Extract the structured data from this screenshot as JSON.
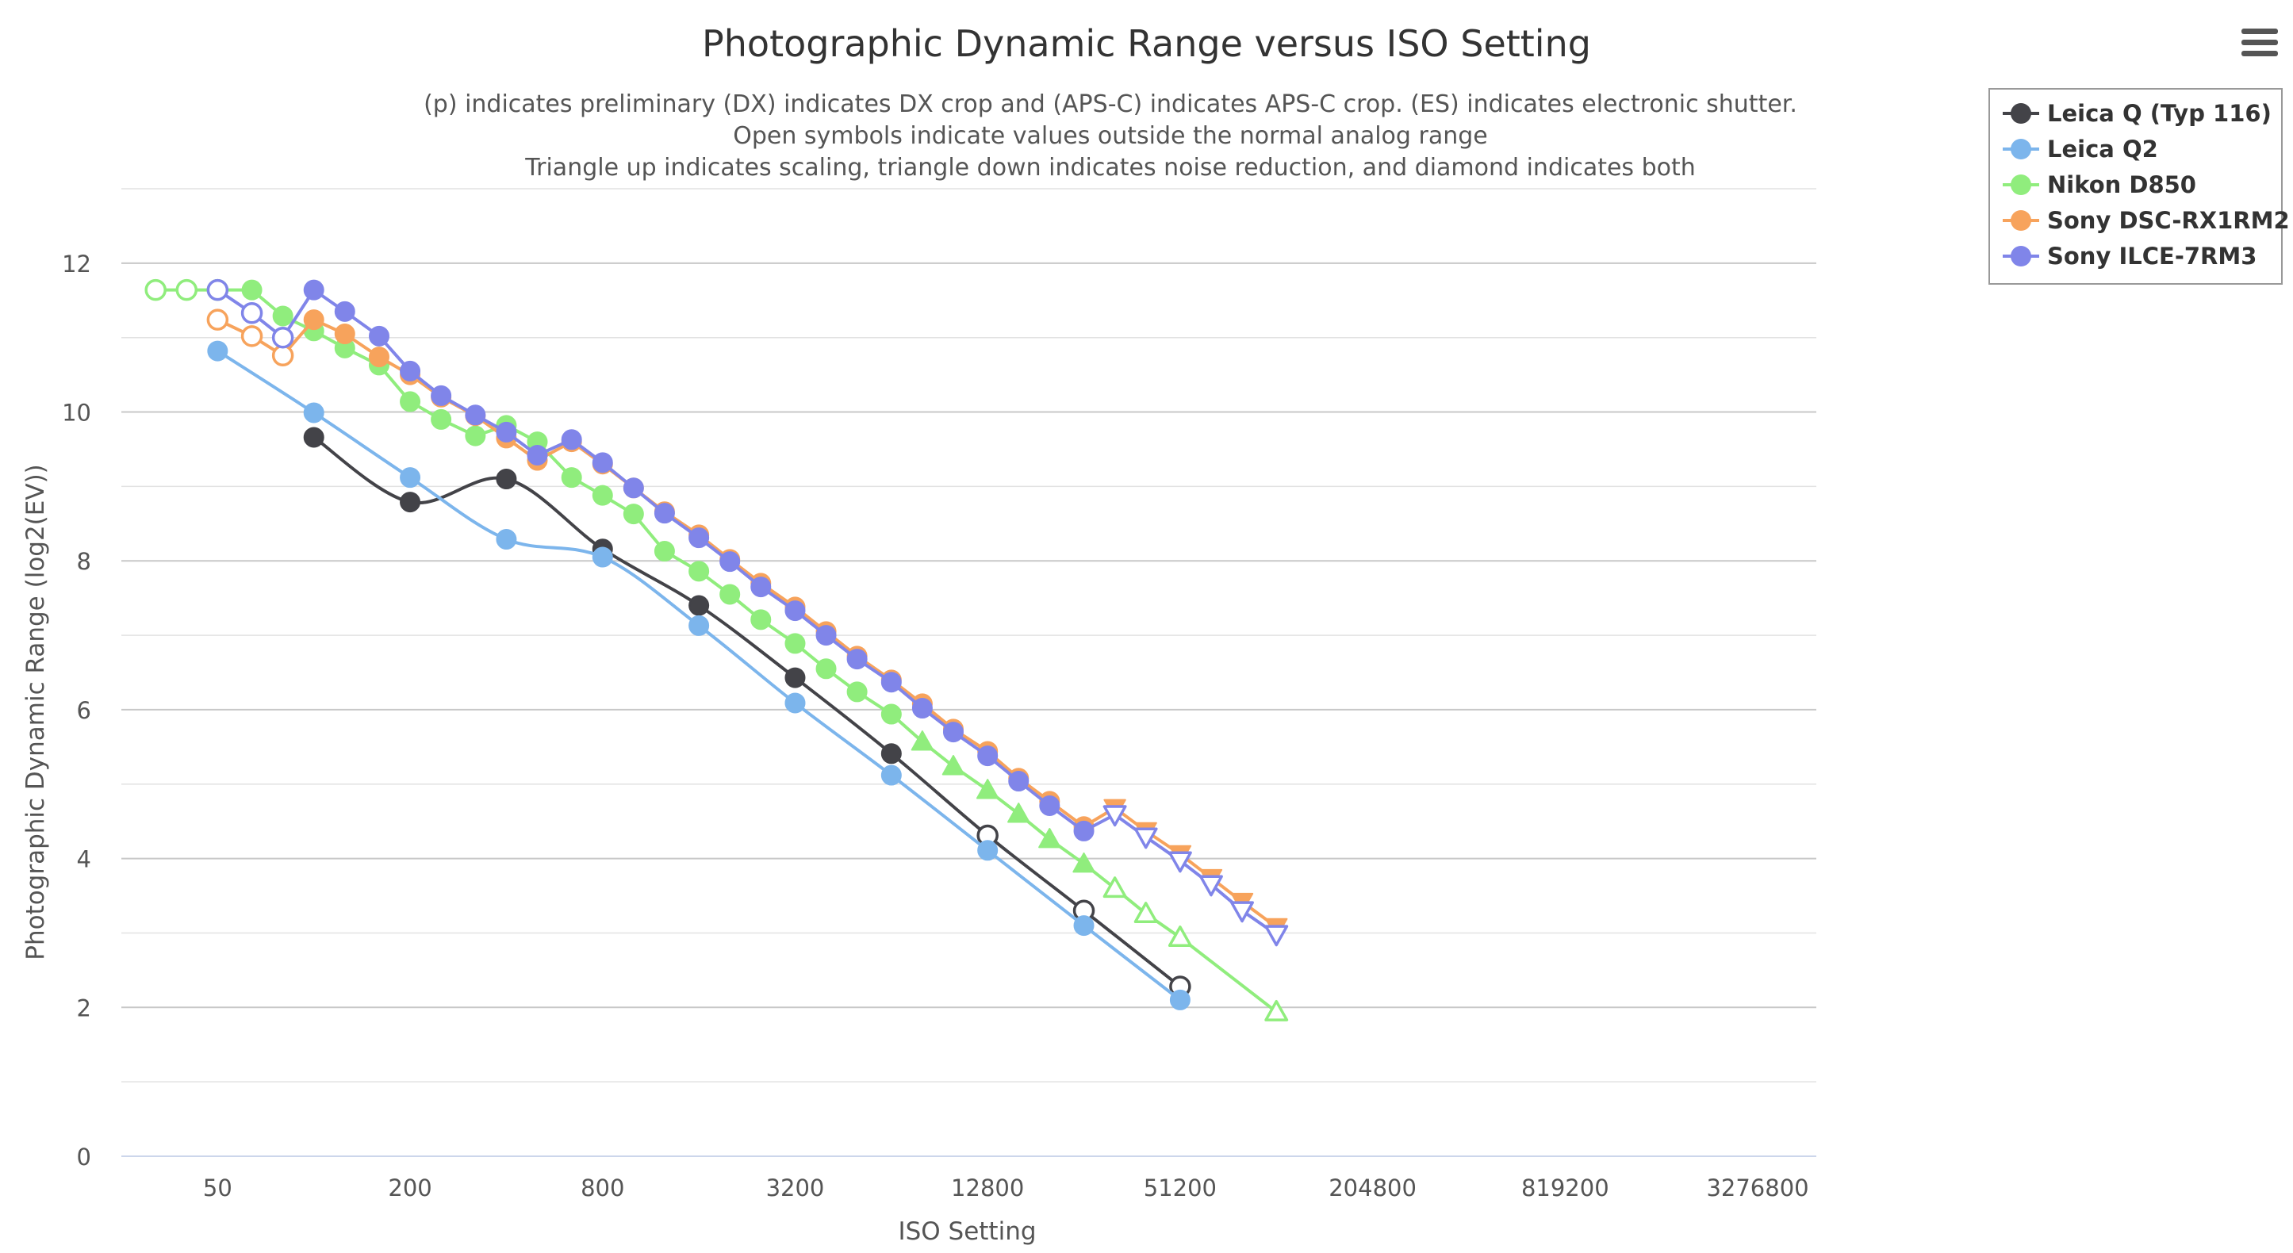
{
  "chart_data": {
    "type": "line",
    "title": "Photographic Dynamic Range versus ISO Setting",
    "subtitle_lines": [
      "(p) indicates preliminary (DX) indicates DX crop and (APS-C) indicates APS-C crop. (ES) indicates electronic shutter.",
      "Open symbols indicate values outside the normal analog range",
      "Triangle up indicates scaling, triangle down indicates noise reduction, and diamond indicates both"
    ],
    "xlabel": "ISO Setting",
    "ylabel": "Photographic Dynamic Range (log2(EV))",
    "x_scale": "log2",
    "xlim": [
      25,
      5000000
    ],
    "ylim": [
      0,
      13
    ],
    "x_ticks": [
      50,
      200,
      800,
      3200,
      12800,
      51200,
      204800,
      819200,
      3276800
    ],
    "x_tick_labels": [
      "50",
      "200",
      "800",
      "3200",
      "12800",
      "51200",
      "204800",
      "819200",
      "3276800"
    ],
    "y_ticks": [
      0,
      2,
      4,
      6,
      8,
      10,
      12
    ],
    "y_tick_labels": [
      "0",
      "2",
      "4",
      "6",
      "8",
      "10",
      "12"
    ],
    "grid": true,
    "legend_position": "top-right",
    "series": [
      {
        "name": "Leica Q (Typ 116)",
        "color": "#434348",
        "smooth": true,
        "points": [
          {
            "x": 100,
            "y": 9.66,
            "sym": "circle",
            "open": false
          },
          {
            "x": 200,
            "y": 8.79,
            "sym": "circle",
            "open": false
          },
          {
            "x": 400,
            "y": 9.1,
            "sym": "circle",
            "open": false
          },
          {
            "x": 800,
            "y": 8.16,
            "sym": "circle",
            "open": false
          },
          {
            "x": 1600,
            "y": 7.4,
            "sym": "circle",
            "open": false
          },
          {
            "x": 3200,
            "y": 6.43,
            "sym": "circle",
            "open": false
          },
          {
            "x": 6400,
            "y": 5.41,
            "sym": "circle",
            "open": false
          },
          {
            "x": 12800,
            "y": 4.31,
            "sym": "circle",
            "open": true
          },
          {
            "x": 25600,
            "y": 3.3,
            "sym": "circle",
            "open": true
          },
          {
            "x": 51200,
            "y": 2.28,
            "sym": "circle",
            "open": true
          }
        ]
      },
      {
        "name": "Leica Q2",
        "color": "#7cb5ec",
        "smooth": true,
        "points": [
          {
            "x": 50,
            "y": 10.82,
            "sym": "circle",
            "open": false
          },
          {
            "x": 100,
            "y": 9.99,
            "sym": "circle",
            "open": false
          },
          {
            "x": 200,
            "y": 9.12,
            "sym": "circle",
            "open": false
          },
          {
            "x": 400,
            "y": 8.29,
            "sym": "circle",
            "open": false
          },
          {
            "x": 800,
            "y": 8.05,
            "sym": "circle",
            "open": false
          },
          {
            "x": 1600,
            "y": 7.13,
            "sym": "circle",
            "open": false
          },
          {
            "x": 3200,
            "y": 6.09,
            "sym": "circle",
            "open": false
          },
          {
            "x": 6400,
            "y": 5.12,
            "sym": "circle",
            "open": false
          },
          {
            "x": 12800,
            "y": 4.11,
            "sym": "circle",
            "open": false
          },
          {
            "x": 25600,
            "y": 3.1,
            "sym": "circle",
            "open": false
          },
          {
            "x": 51200,
            "y": 2.1,
            "sym": "circle",
            "open": false
          }
        ]
      },
      {
        "name": "Nikon D850",
        "color": "#90ed7d",
        "smooth": false,
        "points": [
          {
            "x": 32,
            "y": 11.64,
            "sym": "circle",
            "open": true
          },
          {
            "x": 40,
            "y": 11.64,
            "sym": "circle",
            "open": true
          },
          {
            "x": 50,
            "y": 11.64,
            "sym": "circle",
            "open": true
          },
          {
            "x": 64,
            "y": 11.64,
            "sym": "circle",
            "open": false
          },
          {
            "x": 80,
            "y": 11.29,
            "sym": "circle",
            "open": false
          },
          {
            "x": 100,
            "y": 11.09,
            "sym": "circle",
            "open": false
          },
          {
            "x": 125,
            "y": 10.86,
            "sym": "circle",
            "open": false
          },
          {
            "x": 160,
            "y": 10.63,
            "sym": "circle",
            "open": false
          },
          {
            "x": 200,
            "y": 10.14,
            "sym": "circle",
            "open": false
          },
          {
            "x": 250,
            "y": 9.9,
            "sym": "circle",
            "open": false
          },
          {
            "x": 320,
            "y": 9.68,
            "sym": "circle",
            "open": false
          },
          {
            "x": 400,
            "y": 9.82,
            "sym": "circle",
            "open": false
          },
          {
            "x": 500,
            "y": 9.6,
            "sym": "circle",
            "open": false
          },
          {
            "x": 640,
            "y": 9.12,
            "sym": "circle",
            "open": false
          },
          {
            "x": 800,
            "y": 8.88,
            "sym": "circle",
            "open": false
          },
          {
            "x": 1000,
            "y": 8.63,
            "sym": "circle",
            "open": false
          },
          {
            "x": 1250,
            "y": 8.13,
            "sym": "circle",
            "open": false
          },
          {
            "x": 1600,
            "y": 7.86,
            "sym": "circle",
            "open": false
          },
          {
            "x": 2000,
            "y": 7.55,
            "sym": "circle",
            "open": false
          },
          {
            "x": 2500,
            "y": 7.21,
            "sym": "circle",
            "open": false
          },
          {
            "x": 3200,
            "y": 6.89,
            "sym": "circle",
            "open": false
          },
          {
            "x": 4000,
            "y": 6.55,
            "sym": "circle",
            "open": false
          },
          {
            "x": 5000,
            "y": 6.24,
            "sym": "circle",
            "open": false
          },
          {
            "x": 6400,
            "y": 5.94,
            "sym": "circle",
            "open": false
          },
          {
            "x": 8000,
            "y": 5.57,
            "sym": "triangle-up",
            "open": false
          },
          {
            "x": 10000,
            "y": 5.24,
            "sym": "triangle-up",
            "open": false
          },
          {
            "x": 12800,
            "y": 4.92,
            "sym": "triangle-up",
            "open": false
          },
          {
            "x": 16000,
            "y": 4.6,
            "sym": "triangle-up",
            "open": false
          },
          {
            "x": 20000,
            "y": 4.26,
            "sym": "triangle-up",
            "open": false
          },
          {
            "x": 25600,
            "y": 3.93,
            "sym": "triangle-up",
            "open": false
          },
          {
            "x": 32000,
            "y": 3.6,
            "sym": "triangle-up",
            "open": true
          },
          {
            "x": 40000,
            "y": 3.26,
            "sym": "triangle-up",
            "open": true
          },
          {
            "x": 51200,
            "y": 2.94,
            "sym": "triangle-up",
            "open": true
          },
          {
            "x": 102400,
            "y": 1.94,
            "sym": "triangle-up",
            "open": true
          }
        ]
      },
      {
        "name": "Sony DSC-RX1RM2",
        "color": "#f7a35c",
        "smooth": false,
        "points": [
          {
            "x": 50,
            "y": 11.24,
            "sym": "circle",
            "open": true
          },
          {
            "x": 64,
            "y": 11.02,
            "sym": "circle",
            "open": true
          },
          {
            "x": 80,
            "y": 10.76,
            "sym": "circle",
            "open": true
          },
          {
            "x": 100,
            "y": 11.24,
            "sym": "circle",
            "open": false
          },
          {
            "x": 125,
            "y": 11.05,
            "sym": "circle",
            "open": false
          },
          {
            "x": 160,
            "y": 10.74,
            "sym": "circle",
            "open": false
          },
          {
            "x": 200,
            "y": 10.5,
            "sym": "circle",
            "open": false
          },
          {
            "x": 250,
            "y": 10.2,
            "sym": "circle",
            "open": false
          },
          {
            "x": 320,
            "y": 9.95,
            "sym": "circle",
            "open": false
          },
          {
            "x": 400,
            "y": 9.65,
            "sym": "circle",
            "open": false
          },
          {
            "x": 500,
            "y": 9.35,
            "sym": "circle",
            "open": false
          },
          {
            "x": 640,
            "y": 9.6,
            "sym": "circle",
            "open": false
          },
          {
            "x": 800,
            "y": 9.3,
            "sym": "circle",
            "open": false
          },
          {
            "x": 1000,
            "y": 8.98,
            "sym": "circle",
            "open": false
          },
          {
            "x": 1250,
            "y": 8.66,
            "sym": "circle",
            "open": false
          },
          {
            "x": 1600,
            "y": 8.35,
            "sym": "circle",
            "open": false
          },
          {
            "x": 2000,
            "y": 8.02,
            "sym": "circle",
            "open": false
          },
          {
            "x": 2500,
            "y": 7.7,
            "sym": "circle",
            "open": false
          },
          {
            "x": 3200,
            "y": 7.38,
            "sym": "circle",
            "open": false
          },
          {
            "x": 4000,
            "y": 7.05,
            "sym": "circle",
            "open": false
          },
          {
            "x": 5000,
            "y": 6.72,
            "sym": "circle",
            "open": false
          },
          {
            "x": 6400,
            "y": 6.4,
            "sym": "circle",
            "open": false
          },
          {
            "x": 8000,
            "y": 6.08,
            "sym": "circle",
            "open": false
          },
          {
            "x": 10000,
            "y": 5.74,
            "sym": "circle",
            "open": false
          },
          {
            "x": 12800,
            "y": 5.44,
            "sym": "circle",
            "open": false
          },
          {
            "x": 16000,
            "y": 5.08,
            "sym": "circle",
            "open": false
          },
          {
            "x": 20000,
            "y": 4.77,
            "sym": "circle",
            "open": false
          },
          {
            "x": 25600,
            "y": 4.43,
            "sym": "circle",
            "open": false
          },
          {
            "x": 32000,
            "y": 4.68,
            "sym": "triangle-down",
            "open": false
          },
          {
            "x": 40000,
            "y": 4.37,
            "sym": "triangle-down",
            "open": false
          },
          {
            "x": 51200,
            "y": 4.06,
            "sym": "triangle-down",
            "open": false
          },
          {
            "x": 64000,
            "y": 3.74,
            "sym": "triangle-down",
            "open": false
          },
          {
            "x": 80000,
            "y": 3.42,
            "sym": "triangle-down",
            "open": false
          },
          {
            "x": 102400,
            "y": 3.08,
            "sym": "triangle-down",
            "open": false
          }
        ]
      },
      {
        "name": "Sony ILCE-7RM3",
        "color": "#8085e9",
        "smooth": false,
        "points": [
          {
            "x": 50,
            "y": 11.64,
            "sym": "circle",
            "open": true
          },
          {
            "x": 64,
            "y": 11.33,
            "sym": "circle",
            "open": true
          },
          {
            "x": 80,
            "y": 11.0,
            "sym": "circle",
            "open": true
          },
          {
            "x": 100,
            "y": 11.64,
            "sym": "circle",
            "open": false
          },
          {
            "x": 125,
            "y": 11.35,
            "sym": "circle",
            "open": false
          },
          {
            "x": 160,
            "y": 11.02,
            "sym": "circle",
            "open": false
          },
          {
            "x": 200,
            "y": 10.55,
            "sym": "circle",
            "open": false
          },
          {
            "x": 250,
            "y": 10.22,
            "sym": "circle",
            "open": false
          },
          {
            "x": 320,
            "y": 9.96,
            "sym": "circle",
            "open": false
          },
          {
            "x": 400,
            "y": 9.73,
            "sym": "circle",
            "open": false
          },
          {
            "x": 500,
            "y": 9.42,
            "sym": "circle",
            "open": false
          },
          {
            "x": 640,
            "y": 9.63,
            "sym": "circle",
            "open": false
          },
          {
            "x": 800,
            "y": 9.32,
            "sym": "circle",
            "open": false
          },
          {
            "x": 1000,
            "y": 8.98,
            "sym": "circle",
            "open": false
          },
          {
            "x": 1250,
            "y": 8.64,
            "sym": "circle",
            "open": false
          },
          {
            "x": 1600,
            "y": 8.31,
            "sym": "circle",
            "open": false
          },
          {
            "x": 2000,
            "y": 7.99,
            "sym": "circle",
            "open": false
          },
          {
            "x": 2500,
            "y": 7.65,
            "sym": "circle",
            "open": false
          },
          {
            "x": 3200,
            "y": 7.33,
            "sym": "circle",
            "open": false
          },
          {
            "x": 4000,
            "y": 7.0,
            "sym": "circle",
            "open": false
          },
          {
            "x": 5000,
            "y": 6.68,
            "sym": "circle",
            "open": false
          },
          {
            "x": 6400,
            "y": 6.37,
            "sym": "circle",
            "open": false
          },
          {
            "x": 8000,
            "y": 6.02,
            "sym": "circle",
            "open": false
          },
          {
            "x": 10000,
            "y": 5.7,
            "sym": "circle",
            "open": false
          },
          {
            "x": 12800,
            "y": 5.38,
            "sym": "circle",
            "open": false
          },
          {
            "x": 16000,
            "y": 5.04,
            "sym": "circle",
            "open": false
          },
          {
            "x": 20000,
            "y": 4.71,
            "sym": "circle",
            "open": false
          },
          {
            "x": 25600,
            "y": 4.37,
            "sym": "circle",
            "open": false
          },
          {
            "x": 32000,
            "y": 4.59,
            "sym": "triangle-down",
            "open": true
          },
          {
            "x": 40000,
            "y": 4.29,
            "sym": "triangle-down",
            "open": true
          },
          {
            "x": 51200,
            "y": 3.97,
            "sym": "triangle-down",
            "open": true
          },
          {
            "x": 64000,
            "y": 3.65,
            "sym": "triangle-down",
            "open": true
          },
          {
            "x": 80000,
            "y": 3.3,
            "sym": "triangle-down",
            "open": true
          },
          {
            "x": 102400,
            "y": 2.98,
            "sym": "triangle-down",
            "open": true
          }
        ]
      }
    ]
  },
  "menu": {
    "icon": "hamburger-menu-icon"
  }
}
